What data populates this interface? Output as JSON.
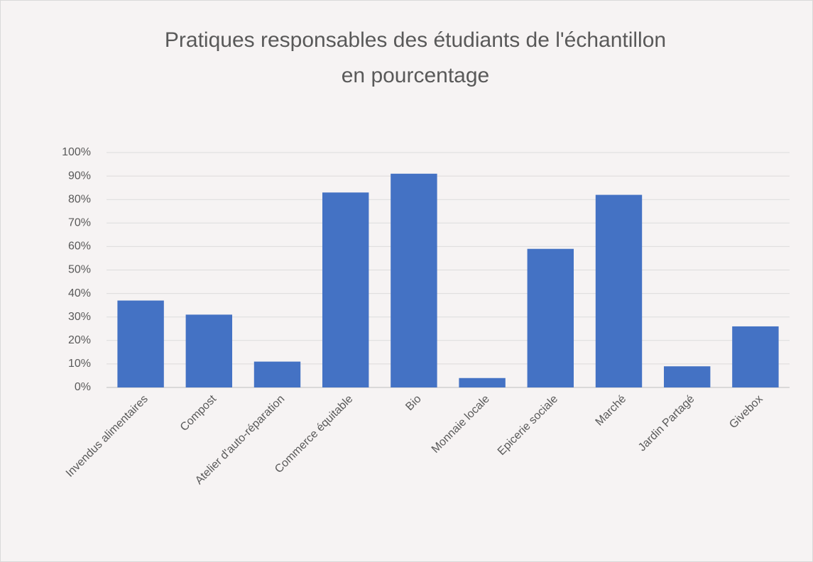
{
  "chart_data": {
    "type": "bar",
    "title": [
      "Pratiques responsables des étudiants de l'échantillon",
      "en pourcentage"
    ],
    "categories": [
      "Invendus alimentaires",
      "Compost",
      "Atelier d'auto-réparation",
      "Commerce équitable",
      "Bio",
      "Monnaie locale",
      "Epicerie sociale",
      "Marché",
      "Jardin Partagé",
      "Givebox"
    ],
    "values": [
      37,
      31,
      11,
      83,
      91,
      4,
      59,
      82,
      9,
      26
    ],
    "color": "#4472c4",
    "ylim": [
      0,
      100
    ],
    "yticks": [
      {
        "value": 0,
        "label": "0%"
      },
      {
        "value": 10,
        "label": "10%"
      },
      {
        "value": 20,
        "label": "20%"
      },
      {
        "value": 30,
        "label": "30%"
      },
      {
        "value": 40,
        "label": "40%"
      },
      {
        "value": 50,
        "label": "50%"
      },
      {
        "value": 60,
        "label": "60%"
      },
      {
        "value": 70,
        "label": "70%"
      },
      {
        "value": 80,
        "label": "80%"
      },
      {
        "value": 90,
        "label": "90%"
      },
      {
        "value": 100,
        "label": "100%"
      }
    ],
    "grid": true
  }
}
